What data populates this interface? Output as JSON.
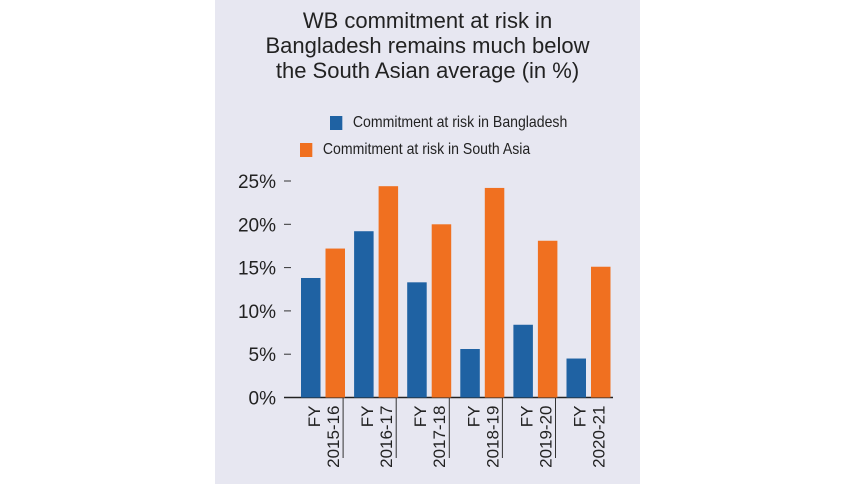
{
  "chart_data": {
    "type": "bar",
    "title": "WB commitment at risk in Bangladesh remains much below the South Asian average (in %)",
    "title_lines": [
      "WB commitment at risk in",
      "Bangladesh remains much below",
      "the South Asian average (in %)"
    ],
    "categories": [
      [
        "FY",
        "2015-16"
      ],
      [
        "FY",
        "2016-17"
      ],
      [
        "FY",
        "2017-18"
      ],
      [
        "FY",
        "2018-19"
      ],
      [
        "FY",
        "2019-20"
      ],
      [
        "FY",
        "2020-21"
      ]
    ],
    "series": [
      {
        "name": "Commitment at risk in Bangladesh",
        "color": "#1f62a3",
        "values": [
          13.8,
          19.2,
          13.3,
          5.6,
          8.4,
          4.5
        ]
      },
      {
        "name": "Commitment at risk in South Asia",
        "color": "#f07020",
        "values": [
          17.2,
          24.4,
          20.0,
          24.2,
          18.1,
          15.1
        ]
      }
    ],
    "yticks": [
      0,
      5,
      10,
      15,
      20,
      25
    ],
    "ytick_labels": [
      "0%",
      "5%",
      "10%",
      "15%",
      "20%",
      "25%"
    ],
    "ylim": [
      0,
      25
    ],
    "xlabel": "",
    "ylabel": "",
    "legend_position": "top",
    "grid": false
  }
}
